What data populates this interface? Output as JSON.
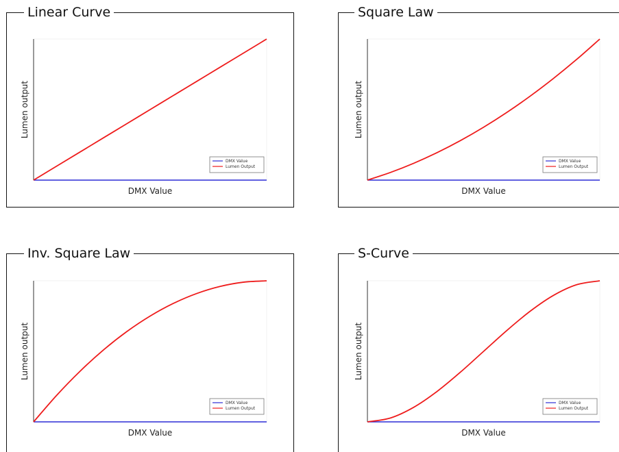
{
  "chart_data": [
    {
      "type": "line",
      "title": "Linear Curve",
      "xlabel": "DMX Value",
      "ylabel": "Lumen output",
      "xlim": [
        0,
        1
      ],
      "ylim": [
        0,
        1
      ],
      "grid": false,
      "legend_position": "bottom-right",
      "series": [
        {
          "name": "DMX Value",
          "color": "#2b2bd6",
          "x": [
            0,
            0.25,
            0.5,
            0.75,
            1
          ],
          "y": [
            0,
            0,
            0,
            0,
            0
          ]
        },
        {
          "name": "Lumen Output",
          "color": "#ee1c1c",
          "x": [
            0,
            0.1,
            0.2,
            0.3,
            0.4,
            0.5,
            0.6,
            0.7,
            0.8,
            0.9,
            1
          ],
          "y": [
            0,
            0.1,
            0.2,
            0.3,
            0.4,
            0.5,
            0.6,
            0.7,
            0.8,
            0.9,
            1
          ]
        }
      ]
    },
    {
      "type": "line",
      "title": "Square Law",
      "xlabel": "DMX Value",
      "ylabel": "Lumen output",
      "xlim": [
        0,
        1
      ],
      "ylim": [
        0,
        1
      ],
      "grid": false,
      "legend_position": "bottom-right",
      "series": [
        {
          "name": "DMX Value",
          "color": "#2b2bd6",
          "x": [
            0,
            0.25,
            0.5,
            0.75,
            1
          ],
          "y": [
            0,
            0,
            0,
            0,
            0
          ]
        },
        {
          "name": "Lumen Output",
          "color": "#ee1c1c",
          "x": [
            0,
            0.1,
            0.2,
            0.3,
            0.4,
            0.5,
            0.6,
            0.7,
            0.8,
            0.9,
            1
          ],
          "y": [
            0,
            0.055,
            0.12,
            0.195,
            0.28,
            0.375,
            0.48,
            0.595,
            0.72,
            0.855,
            1
          ]
        }
      ]
    },
    {
      "type": "line",
      "title": "Inv. Square Law",
      "xlabel": "DMX Value",
      "ylabel": "Lumen output",
      "xlim": [
        0,
        1
      ],
      "ylim": [
        0,
        1
      ],
      "grid": false,
      "legend_position": "bottom-right",
      "series": [
        {
          "name": "DMX Value",
          "color": "#2b2bd6",
          "x": [
            0,
            0.25,
            0.5,
            0.75,
            1
          ],
          "y": [
            0,
            0,
            0,
            0,
            0
          ]
        },
        {
          "name": "Lumen Output",
          "color": "#ee1c1c",
          "x": [
            0,
            0.1,
            0.2,
            0.3,
            0.4,
            0.5,
            0.6,
            0.7,
            0.8,
            0.9,
            1
          ],
          "y": [
            0,
            0.19,
            0.36,
            0.51,
            0.64,
            0.75,
            0.84,
            0.91,
            0.96,
            0.99,
            1
          ]
        }
      ]
    },
    {
      "type": "line",
      "title": "S-Curve",
      "xlabel": "DMX Value",
      "ylabel": "Lumen output",
      "xlim": [
        0,
        1
      ],
      "ylim": [
        0,
        1
      ],
      "grid": false,
      "legend_position": "bottom-right",
      "series": [
        {
          "name": "DMX Value",
          "color": "#2b2bd6",
          "x": [
            0,
            0.25,
            0.5,
            0.75,
            1
          ],
          "y": [
            0,
            0,
            0,
            0,
            0
          ]
        },
        {
          "name": "Lumen Output",
          "color": "#ee1c1c",
          "x": [
            0,
            0.1,
            0.2,
            0.3,
            0.4,
            0.5,
            0.6,
            0.7,
            0.8,
            0.9,
            1
          ],
          "y": [
            0,
            0.028,
            0.104,
            0.216,
            0.352,
            0.5,
            0.648,
            0.784,
            0.896,
            0.972,
            1
          ]
        }
      ]
    }
  ]
}
